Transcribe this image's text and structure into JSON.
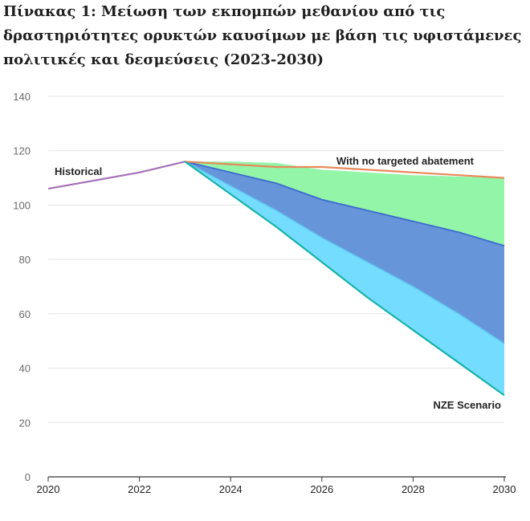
{
  "title": "Πίνακας 1: Μείωση των εκπομπών μεθανίου από τις δραστηριότητες ορυκτών καυσίμων με βάση τις υφιστάμενες πολιτικές και δεσμεύσεις (2023-2030)",
  "chart_data": {
    "type": "area",
    "title": "Πίνακας 1: Μείωση των εκπομπών μεθανίου από τις δραστηριότητες ορυκτών καυσίμων με βάση τις υφιστάμενες πολιτικές και δεσμεύσεις (2023-2030)",
    "xlabel": "",
    "ylabel": "",
    "xlim": [
      2020,
      2030
    ],
    "ylim": [
      0,
      140
    ],
    "yticks": [
      0,
      20,
      40,
      60,
      80,
      100,
      120,
      140
    ],
    "xticks": [
      2020,
      2022,
      2024,
      2026,
      2028,
      2030
    ],
    "grid": "horizontal",
    "legend": "none",
    "annotations": [
      "Historical",
      "With no targeted abatement",
      "NZE Scenario"
    ],
    "colors": {
      "historical": "#a472b8",
      "no_abatement": "#e8895a",
      "nze": "#16b3a8",
      "band_top": "#93f5a8",
      "band_mid": "#6795da",
      "band_low": "#74dcff"
    },
    "series": [
      {
        "name": "Historical",
        "role": "line",
        "x": [
          2020,
          2022,
          2023
        ],
        "y": [
          106,
          112,
          116
        ]
      },
      {
        "name": "With no targeted abatement",
        "role": "line",
        "x": [
          2023,
          2024,
          2025,
          2026,
          2027,
          2028,
          2029,
          2030
        ],
        "y": [
          116,
          115,
          114,
          114,
          113,
          112,
          111,
          110
        ]
      },
      {
        "name": "",
        "role": "band-edge",
        "x": [
          2023,
          2024,
          2025,
          2026,
          2027,
          2028,
          2029,
          2030
        ],
        "y": [
          116,
          116,
          115.5,
          113,
          112,
          111,
          110.5,
          110
        ]
      },
      {
        "name": "",
        "role": "band-edge",
        "x": [
          2023,
          2024,
          2025,
          2026,
          2027,
          2028,
          2029,
          2030
        ],
        "y": [
          116,
          112,
          108,
          102,
          98,
          94,
          90,
          85
        ]
      },
      {
        "name": "",
        "role": "band-edge",
        "x": [
          2023,
          2024,
          2025,
          2026,
          2027,
          2028,
          2029,
          2030
        ],
        "y": [
          116,
          107,
          98,
          88,
          79,
          70,
          60,
          49
        ]
      },
      {
        "name": "NZE Scenario",
        "role": "line",
        "x": [
          2023,
          2024,
          2025,
          2026,
          2027,
          2028,
          2029,
          2030
        ],
        "y": [
          116,
          104,
          92,
          79,
          66,
          54,
          42,
          30
        ]
      }
    ]
  }
}
